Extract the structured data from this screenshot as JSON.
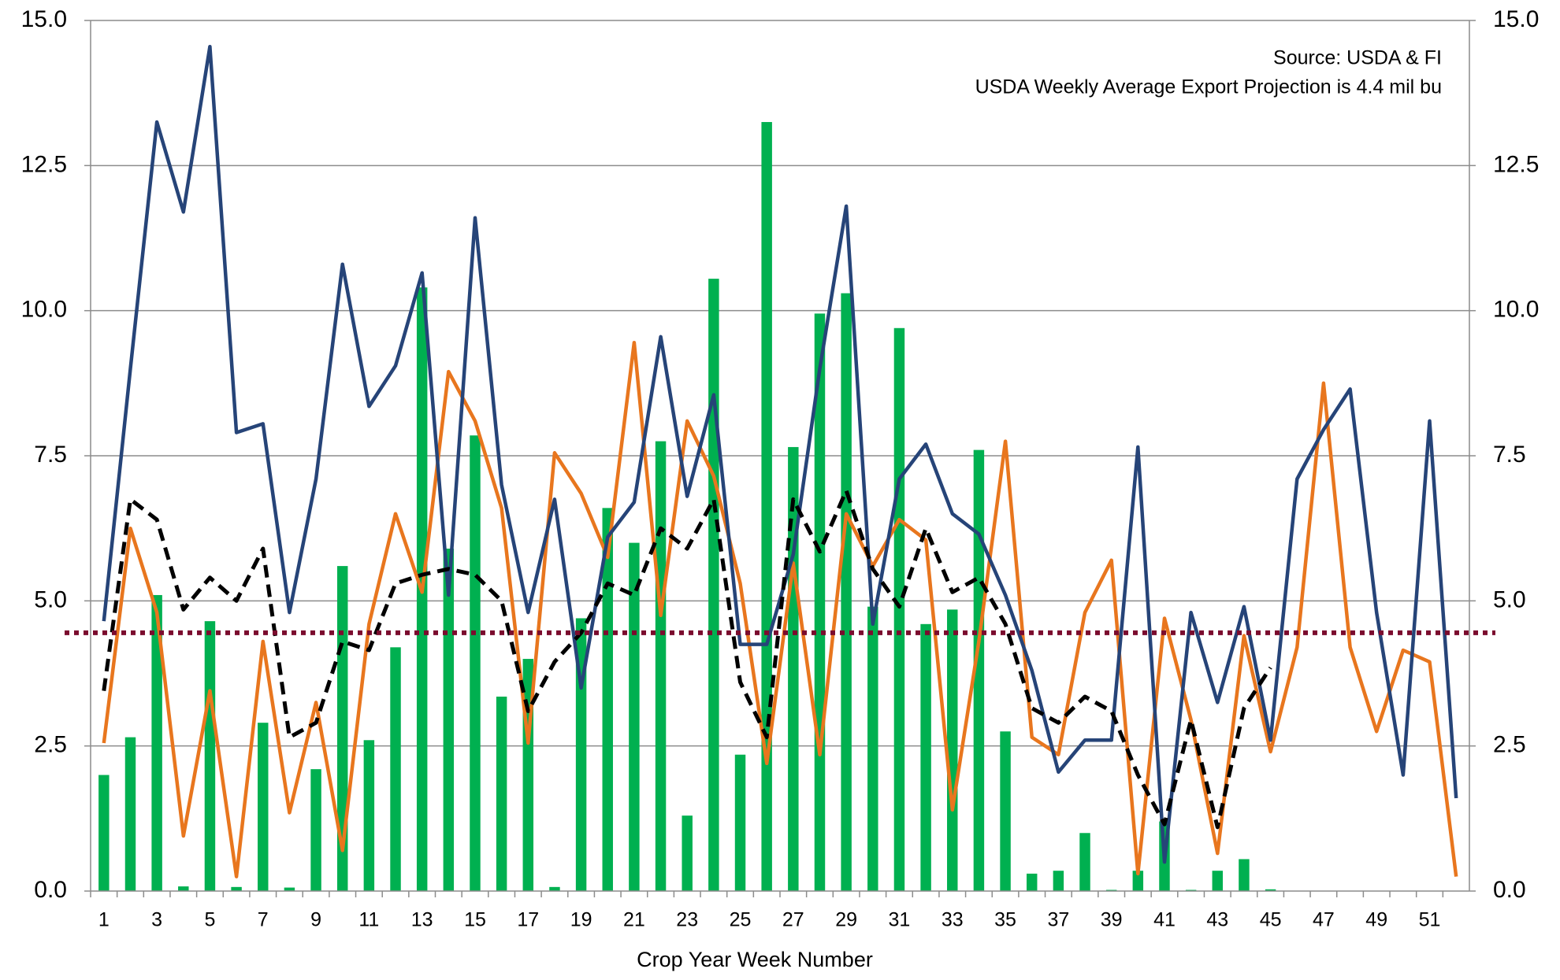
{
  "chart_data": {
    "type": "combo",
    "annotations": [
      "Source: USDA & FI",
      "USDA Weekly Average Export Projection is 4.4 mil bu"
    ],
    "x_label": "Crop Year Week Number",
    "categories": [
      1,
      null,
      3,
      null,
      5,
      null,
      7,
      null,
      9,
      null,
      11,
      null,
      13,
      null,
      15,
      null,
      17,
      null,
      19,
      null,
      21,
      null,
      23,
      null,
      25,
      null,
      27,
      null,
      29,
      null,
      31,
      null,
      33,
      null,
      35,
      null,
      37,
      null,
      39,
      null,
      41,
      null,
      43,
      null,
      45,
      null,
      47,
      null,
      49,
      null,
      51,
      null
    ],
    "ylim": [
      0,
      15
    ],
    "yticks": [
      {
        "value": 0,
        "label": "0.0"
      },
      {
        "value": 2.5,
        "label": "2.5"
      },
      {
        "value": 5,
        "label": "5.0"
      },
      {
        "value": 7.5,
        "label": "7.5"
      },
      {
        "value": 10,
        "label": "10.0"
      },
      {
        "value": 12.5,
        "label": "12.5"
      },
      {
        "value": 15,
        "label": "15.0"
      }
    ],
    "y2lim": [
      0,
      15
    ],
    "y2ticks": [
      {
        "value": 0,
        "label": "0.0"
      },
      {
        "value": 2.5,
        "label": "2.5"
      },
      {
        "value": 5,
        "label": "5.0"
      },
      {
        "value": 7.5,
        "label": "7.5"
      },
      {
        "value": 10,
        "label": "10.0"
      },
      {
        "value": 12.5,
        "label": "12.5"
      },
      {
        "value": 15,
        "label": "15.0"
      }
    ],
    "grid": true,
    "series": [
      {
        "type": "bar",
        "color": "#00b050",
        "values": [
          2.0,
          2.65,
          5.1,
          0.08,
          4.65,
          0.07,
          2.9,
          0.06,
          2.1,
          5.6,
          2.6,
          4.2,
          10.4,
          5.9,
          7.85,
          3.35,
          4.0,
          0.07,
          4.7,
          6.6,
          6.0,
          7.75,
          1.3,
          10.55,
          2.35,
          13.25,
          7.65,
          9.95,
          10.3,
          4.9,
          9.7,
          4.6,
          4.85,
          7.6,
          2.75,
          0.3,
          0.35,
          1.0,
          0.02,
          0.35,
          1.2,
          0.02,
          0.35,
          0.55,
          0.03,
          null,
          null,
          null,
          null,
          null,
          null,
          null
        ]
      },
      {
        "type": "line",
        "color": "#e8761e",
        "values": [
          2.55,
          6.25,
          4.8,
          0.95,
          3.45,
          0.25,
          4.3,
          1.35,
          3.25,
          0.7,
          4.6,
          6.5,
          5.15,
          8.95,
          8.1,
          6.6,
          2.55,
          7.55,
          6.85,
          5.75,
          9.45,
          4.75,
          8.1,
          7.15,
          5.3,
          2.2,
          5.65,
          2.35,
          6.5,
          5.6,
          6.4,
          6.05,
          1.4,
          4.3,
          7.75,
          2.65,
          2.35,
          4.8,
          5.7,
          0.3,
          4.7,
          2.95,
          0.65,
          4.4,
          2.4,
          4.2,
          8.75,
          4.2,
          2.75,
          4.15,
          3.95,
          0.25
        ]
      },
      {
        "type": "line",
        "color": "#264478",
        "values": [
          4.65,
          9.0,
          13.25,
          11.7,
          14.55,
          7.9,
          8.05,
          4.8,
          7.1,
          10.8,
          8.35,
          9.05,
          10.65,
          5.1,
          11.6,
          7.0,
          4.8,
          6.75,
          3.5,
          6.1,
          6.7,
          9.55,
          6.8,
          8.55,
          4.25,
          4.25,
          5.8,
          9.0,
          11.8,
          4.6,
          7.1,
          7.7,
          6.5,
          6.15,
          5.1,
          3.8,
          2.05,
          2.6,
          2.6,
          7.65,
          0.5,
          4.8,
          3.25,
          4.9,
          2.6,
          7.1,
          7.95,
          8.65,
          4.8,
          2.0,
          8.1,
          1.6
        ]
      },
      {
        "type": "line",
        "color": "#000000",
        "dashed": true,
        "values": [
          3.45,
          6.75,
          6.4,
          4.85,
          5.4,
          5.0,
          5.9,
          2.65,
          2.9,
          4.3,
          4.15,
          5.3,
          5.45,
          5.55,
          5.45,
          5.0,
          3.1,
          3.95,
          4.45,
          5.3,
          5.1,
          6.25,
          5.9,
          6.75,
          3.6,
          2.65,
          6.75,
          5.85,
          6.9,
          5.55,
          4.9,
          6.25,
          5.15,
          5.4,
          4.6,
          3.15,
          2.9,
          3.35,
          3.1,
          2.0,
          1.15,
          2.95,
          1.1,
          3.15,
          3.85,
          null,
          null,
          null,
          null,
          null,
          null,
          null
        ]
      }
    ],
    "reference_line": {
      "value": 4.45,
      "color": "#7b0c2e"
    }
  }
}
